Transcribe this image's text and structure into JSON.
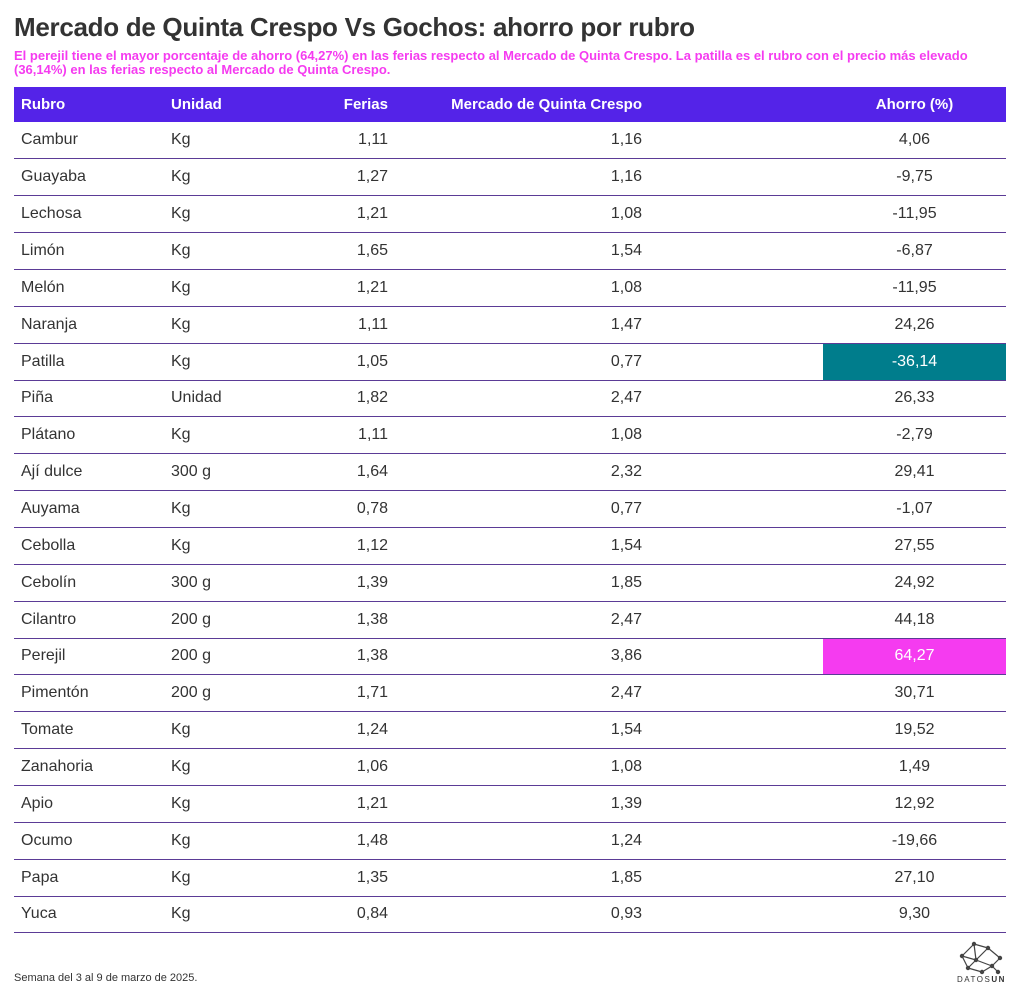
{
  "title": "Mercado de Quinta Crespo Vs Gochos: ahorro por rubro",
  "subtitle": "El perejil tiene el mayor porcentaje de ahorro (64,27%) en las ferias respecto al Mercado de Quinta Crespo. La patilla es el rubro con el precio más elevado (36,14%) en las ferias respecto al Mercado de Quinta Crespo.",
  "footer": "Semana del 3 al 9 de marzo de 2025.",
  "logo": {
    "label": "DATOS",
    "label_bold": "UN"
  },
  "colors": {
    "header": "#5423e8",
    "accent_pink": "#f53bf0",
    "accent_cyan": "#007d8c"
  },
  "chart_data": {
    "type": "table",
    "columns": [
      "Rubro",
      "Unidad",
      "Ferias",
      "Mercado de Quinta Crespo",
      "Ahorro (%)"
    ],
    "rows": [
      {
        "rubro": "Cambur",
        "unidad": "Kg",
        "ferias": "1,11",
        "mercado": "1,16",
        "ahorro": "4,06",
        "highlight": ""
      },
      {
        "rubro": "Guayaba",
        "unidad": "Kg",
        "ferias": "1,27",
        "mercado": "1,16",
        "ahorro": "-9,75",
        "highlight": ""
      },
      {
        "rubro": "Lechosa",
        "unidad": "Kg",
        "ferias": "1,21",
        "mercado": "1,08",
        "ahorro": "-11,95",
        "highlight": ""
      },
      {
        "rubro": "Limón",
        "unidad": "Kg",
        "ferias": "1,65",
        "mercado": "1,54",
        "ahorro": "-6,87",
        "highlight": ""
      },
      {
        "rubro": "Melón",
        "unidad": "Kg",
        "ferias": "1,21",
        "mercado": "1,08",
        "ahorro": "-11,95",
        "highlight": ""
      },
      {
        "rubro": "Naranja",
        "unidad": "Kg",
        "ferias": "1,11",
        "mercado": "1,47",
        "ahorro": "24,26",
        "highlight": ""
      },
      {
        "rubro": "Patilla",
        "unidad": "Kg",
        "ferias": "1,05",
        "mercado": "0,77",
        "ahorro": "-36,14",
        "highlight": "cyan"
      },
      {
        "rubro": "Piña",
        "unidad": "Unidad",
        "ferias": "1,82",
        "mercado": "2,47",
        "ahorro": "26,33",
        "highlight": ""
      },
      {
        "rubro": "Plátano",
        "unidad": "Kg",
        "ferias": "1,11",
        "mercado": "1,08",
        "ahorro": "-2,79",
        "highlight": ""
      },
      {
        "rubro": "Ají dulce",
        "unidad": "300 g",
        "ferias": "1,64",
        "mercado": "2,32",
        "ahorro": "29,41",
        "highlight": ""
      },
      {
        "rubro": "Auyama",
        "unidad": "Kg",
        "ferias": "0,78",
        "mercado": "0,77",
        "ahorro": "-1,07",
        "highlight": ""
      },
      {
        "rubro": "Cebolla",
        "unidad": "Kg",
        "ferias": "1,12",
        "mercado": "1,54",
        "ahorro": "27,55",
        "highlight": ""
      },
      {
        "rubro": "Cebolín",
        "unidad": "300 g",
        "ferias": "1,39",
        "mercado": "1,85",
        "ahorro": "24,92",
        "highlight": ""
      },
      {
        "rubro": "Cilantro",
        "unidad": "200 g",
        "ferias": "1,38",
        "mercado": "2,47",
        "ahorro": "44,18",
        "highlight": ""
      },
      {
        "rubro": "Perejil",
        "unidad": "200 g",
        "ferias": "1,38",
        "mercado": "3,86",
        "ahorro": "64,27",
        "highlight": "pink"
      },
      {
        "rubro": "Pimentón",
        "unidad": "200 g",
        "ferias": "1,71",
        "mercado": "2,47",
        "ahorro": "30,71",
        "highlight": ""
      },
      {
        "rubro": "Tomate",
        "unidad": "Kg",
        "ferias": "1,24",
        "mercado": "1,54",
        "ahorro": "19,52",
        "highlight": ""
      },
      {
        "rubro": "Zanahoria",
        "unidad": "Kg",
        "ferias": "1,06",
        "mercado": "1,08",
        "ahorro": "1,49",
        "highlight": ""
      },
      {
        "rubro": "Apio",
        "unidad": "Kg",
        "ferias": "1,21",
        "mercado": "1,39",
        "ahorro": "12,92",
        "highlight": ""
      },
      {
        "rubro": "Ocumo",
        "unidad": "Kg",
        "ferias": "1,48",
        "mercado": "1,24",
        "ahorro": "-19,66",
        "highlight": ""
      },
      {
        "rubro": "Papa",
        "unidad": "Kg",
        "ferias": "1,35",
        "mercado": "1,85",
        "ahorro": "27,10",
        "highlight": ""
      },
      {
        "rubro": "Yuca",
        "unidad": "Kg",
        "ferias": "0,84",
        "mercado": "0,93",
        "ahorro": "9,30",
        "highlight": ""
      }
    ]
  }
}
